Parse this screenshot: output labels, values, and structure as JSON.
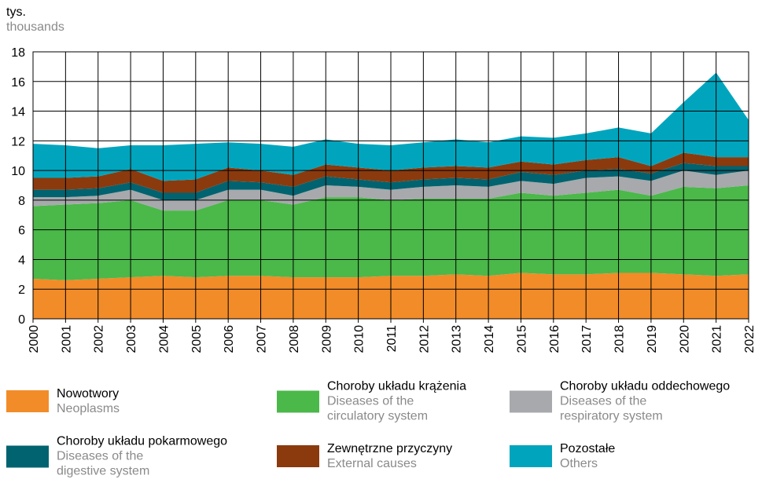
{
  "chart_data": {
    "type": "stacked-area",
    "y_unit_label": "tys.",
    "y_unit_label_en": "thousands",
    "x": [
      2000,
      2001,
      2002,
      2003,
      2004,
      2005,
      2006,
      2007,
      2008,
      2009,
      2010,
      2011,
      2012,
      2013,
      2014,
      2015,
      2016,
      2017,
      2018,
      2019,
      2020,
      2021,
      2022
    ],
    "xlim": [
      2000,
      2022
    ],
    "ylim": [
      0,
      18
    ],
    "yticks": [
      0,
      2,
      4,
      6,
      8,
      10,
      12,
      14,
      16,
      18
    ],
    "grid": true,
    "series": [
      {
        "name": "Nowotwory",
        "name_en": "Neoplasms",
        "color": "#f28c28",
        "values": [
          2.7,
          2.6,
          2.7,
          2.8,
          2.9,
          2.8,
          2.9,
          2.9,
          2.8,
          2.8,
          2.8,
          2.9,
          2.9,
          3.0,
          2.9,
          3.1,
          3.0,
          3.0,
          3.1,
          3.1,
          3.0,
          2.9,
          3.0
        ]
      },
      {
        "name": "Choroby układu krążenia",
        "name_en": "Diseases of the circulatory system",
        "color": "#4bb84a",
        "values": [
          4.9,
          5.1,
          5.1,
          5.2,
          4.4,
          4.5,
          5.1,
          5.1,
          4.9,
          5.4,
          5.4,
          5.1,
          5.2,
          5.1,
          5.2,
          5.4,
          5.3,
          5.5,
          5.6,
          5.2,
          5.9,
          5.9,
          6.0
        ]
      },
      {
        "name": "Choroby układu oddechowego",
        "name_en": "Diseases of the respiratory system",
        "color": "#a7a9ac",
        "values": [
          0.6,
          0.5,
          0.5,
          0.7,
          0.7,
          0.7,
          0.7,
          0.7,
          0.6,
          0.8,
          0.7,
          0.7,
          0.8,
          0.9,
          0.8,
          0.8,
          0.8,
          1.0,
          0.9,
          1.0,
          1.1,
          0.9,
          1.0
        ]
      },
      {
        "name": "Choroby układu pokarmowego",
        "name_en": "Diseases of the digestive system",
        "color": "#00636f",
        "values": [
          0.5,
          0.5,
          0.5,
          0.5,
          0.5,
          0.5,
          0.6,
          0.5,
          0.6,
          0.6,
          0.5,
          0.5,
          0.5,
          0.5,
          0.5,
          0.6,
          0.6,
          0.5,
          0.5,
          0.5,
          0.5,
          0.6,
          0.3
        ]
      },
      {
        "name": "Zewnętrzne przyczyny",
        "name_en": "External causes",
        "color": "#8b3a0e",
        "values": [
          0.8,
          0.8,
          0.8,
          0.9,
          0.8,
          0.9,
          0.9,
          0.8,
          0.8,
          0.8,
          0.8,
          0.8,
          0.8,
          0.8,
          0.8,
          0.7,
          0.7,
          0.7,
          0.8,
          0.5,
          0.7,
          0.6,
          0.6
        ]
      },
      {
        "name": "Pozostałe",
        "name_en": "Others",
        "color": "#00a5bd",
        "values": [
          2.3,
          2.2,
          1.9,
          1.6,
          2.4,
          2.4,
          1.7,
          1.8,
          1.9,
          1.7,
          1.6,
          1.7,
          1.7,
          1.8,
          1.7,
          1.7,
          1.8,
          1.8,
          2.0,
          2.2,
          3.4,
          5.7,
          2.5
        ]
      }
    ]
  }
}
